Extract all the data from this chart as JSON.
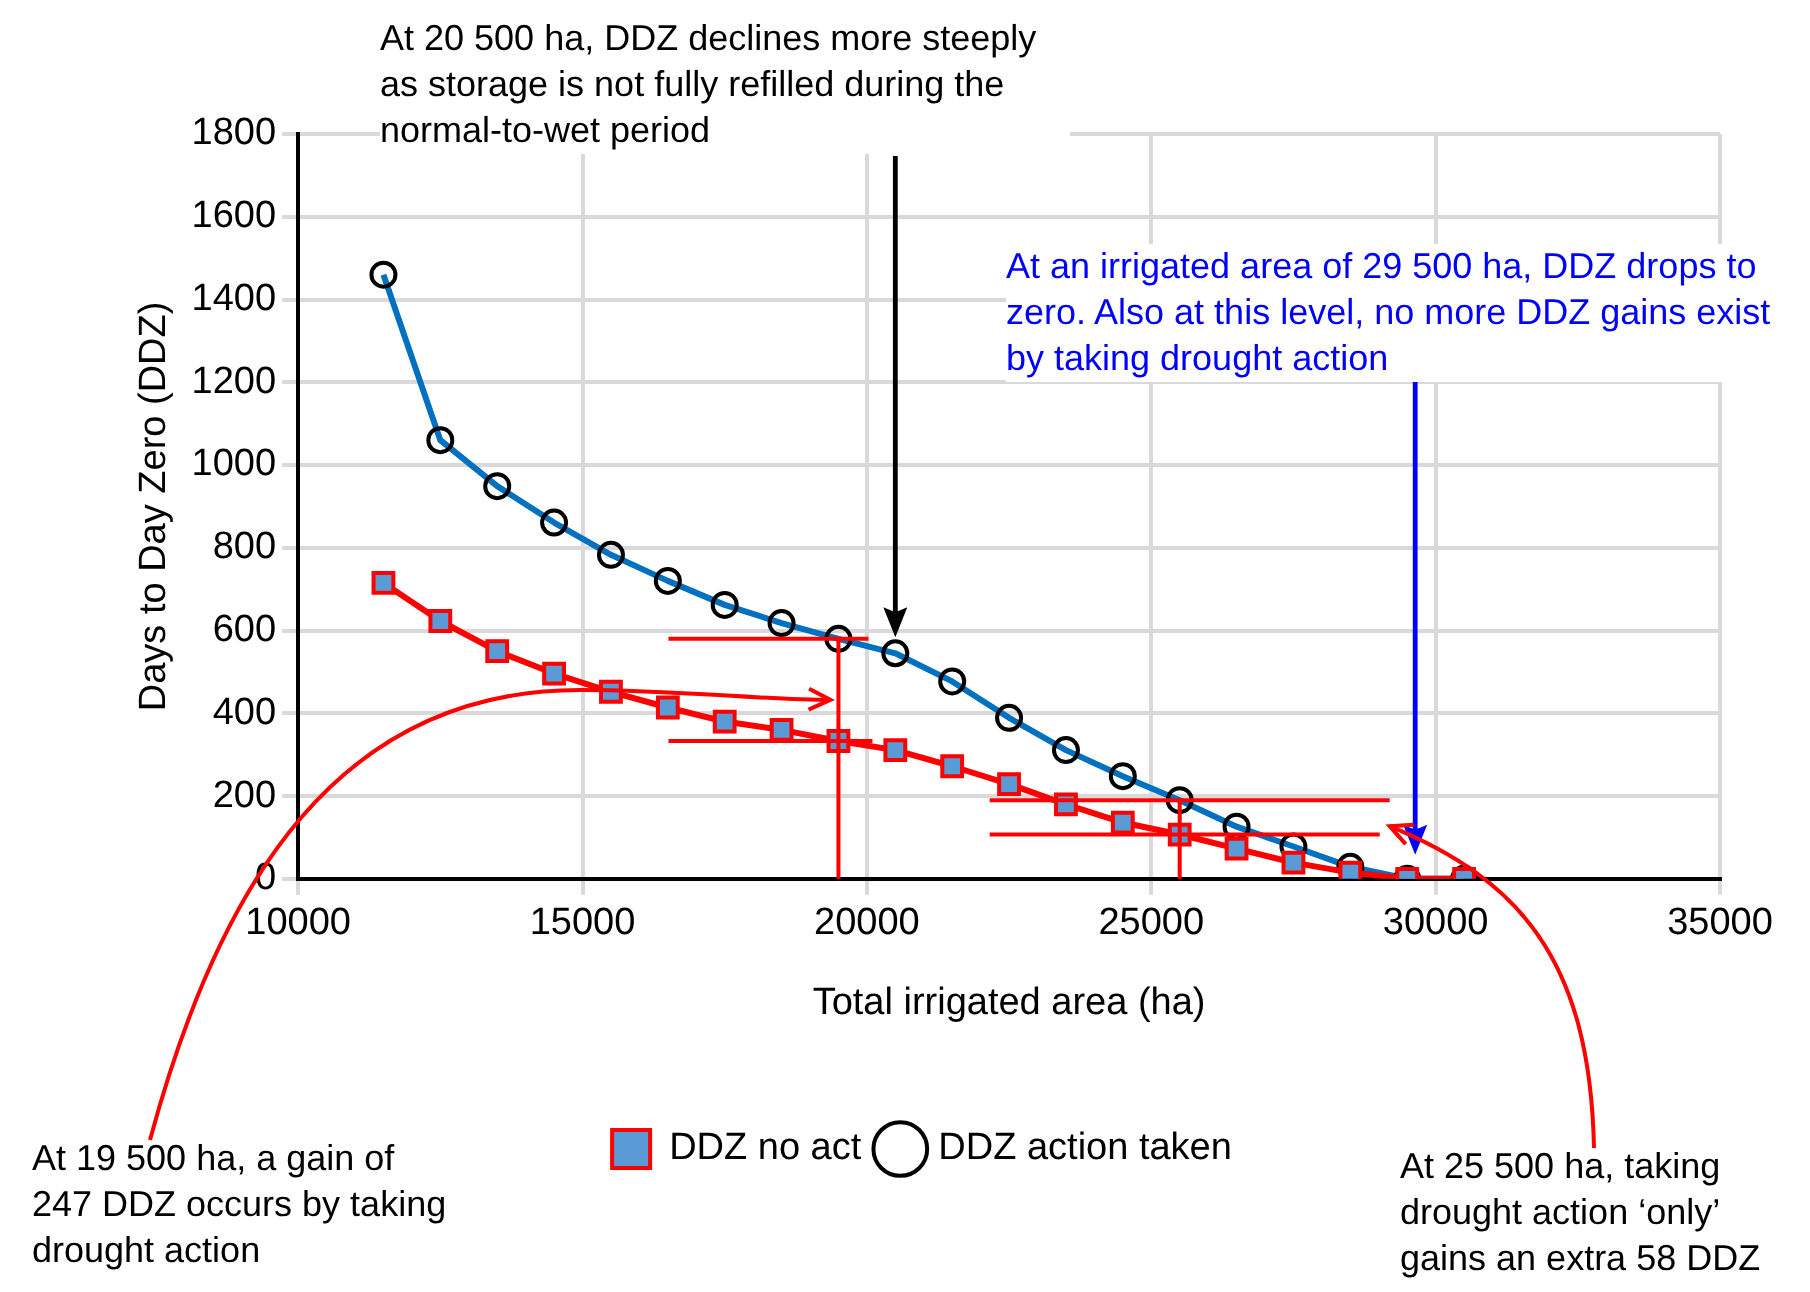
{
  "chart_data": {
    "type": "line",
    "xlabel": "Total irrigated area (ha)",
    "ylabel": "Days to Day Zero (DDZ)",
    "x": [
      11500,
      12500,
      13500,
      14500,
      15500,
      16500,
      17500,
      18500,
      19500,
      20500,
      21500,
      22500,
      23500,
      24500,
      25500,
      26500,
      27500,
      28500,
      29500,
      30500
    ],
    "series": [
      {
        "name": "DDZ no act",
        "color": "#ff0000",
        "marker": "square",
        "values": [
          715,
          623,
          550,
          496,
          452,
          414,
          380,
          360,
          333,
          311,
          272,
          229,
          180,
          136,
          107,
          73,
          39,
          15,
          0,
          0
        ]
      },
      {
        "name": "DDZ action taken",
        "color": "#0070c0",
        "marker": "circle",
        "values": [
          1460,
          1060,
          949,
          861,
          783,
          720,
          662,
          618,
          580,
          545,
          477,
          389,
          311,
          248,
          190,
          126,
          78,
          29,
          0,
          0
        ]
      }
    ],
    "xlim": [
      10000,
      35000
    ],
    "xticks": [
      10000,
      15000,
      20000,
      25000,
      30000,
      35000
    ],
    "ylim": [
      0,
      1800
    ],
    "yticks": [
      0,
      200,
      400,
      600,
      800,
      1000,
      1200,
      1400,
      1600,
      1800
    ],
    "grid": true,
    "legend": "bottom",
    "annotations": [
      "At 20 500 ha, DDZ declines more steeply as storage is not fully refilled during the normal-to-wet period",
      "At an irrigated area of 29 500 ha, DDZ drops to zero.  Also at this level, no more DDZ gains exist by taking drought action",
      "At 19 500 ha, a gain of 247 DDZ occurs by taking drought action",
      "At 25 500 ha, taking drought action ‘only’ gains an extra 58 DDZ"
    ]
  }
}
